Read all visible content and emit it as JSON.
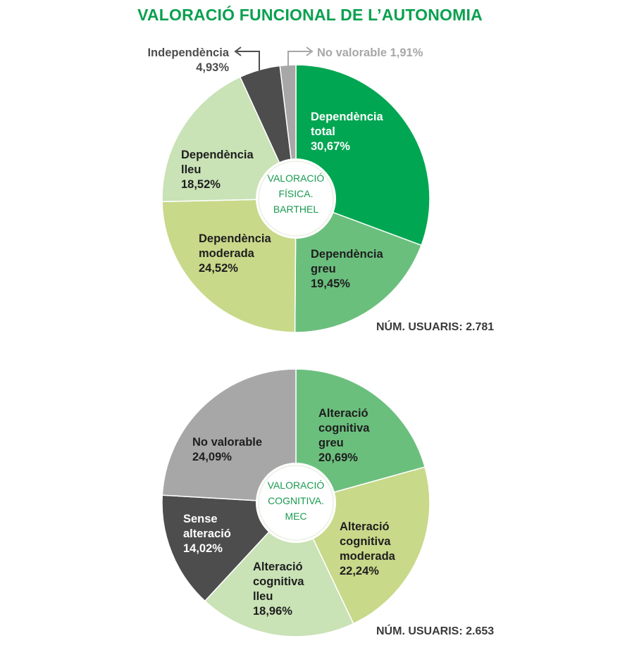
{
  "title": "VALORACIÓ FUNCIONAL DE L’AUTONOMIA",
  "chart_data": [
    {
      "type": "pie",
      "center_label": [
        "VALORACIÓ",
        "FÍSICA.",
        "BARTHEL"
      ],
      "users_label": "NÚM. USUARIS: 2.781",
      "slices": [
        {
          "label": [
            "Dependència",
            "total"
          ],
          "pct_text": "30,67%",
          "value": 30.67,
          "color": "#00a651",
          "text_color": "#ffffff"
        },
        {
          "label": [
            "Dependència",
            "greu"
          ],
          "pct_text": "19,45%",
          "value": 19.45,
          "color": "#6bbf7d",
          "text_color": "#1e1e1e"
        },
        {
          "label": [
            "Dependència",
            "moderada"
          ],
          "pct_text": "24,52%",
          "value": 24.52,
          "color": "#c8d98a",
          "text_color": "#1e1e1e"
        },
        {
          "label": [
            "Dependència",
            "lleu"
          ],
          "pct_text": "18,52%",
          "value": 18.52,
          "color": "#c9e2b6",
          "text_color": "#1e1e1e"
        },
        {
          "label": [
            "Independència"
          ],
          "pct_text": "4,93%",
          "value": 4.93,
          "color": "#4d4d4d",
          "text_color": "#4d4d4d"
        },
        {
          "label": [
            "No valorable"
          ],
          "pct_text": "1,91%",
          "value": 1.91,
          "color": "#a7a7a7",
          "text_color": "#a7a7a7"
        }
      ]
    },
    {
      "type": "pie",
      "center_label": [
        "VALORACIÓ",
        "COGNITIVA.",
        "MEC"
      ],
      "users_label": "NÚM. USUARIS: 2.653",
      "slices": [
        {
          "label": [
            "Alteració",
            "cognitiva",
            "greu"
          ],
          "pct_text": "20,69%",
          "value": 20.69,
          "color": "#6bbf7d",
          "text_color": "#1e1e1e"
        },
        {
          "label": [
            "Alteració",
            "cognitiva",
            "moderada"
          ],
          "pct_text": "22,24%",
          "value": 22.24,
          "color": "#c8d98a",
          "text_color": "#1e1e1e"
        },
        {
          "label": [
            "Alteració",
            "cognitiva",
            "lleu"
          ],
          "pct_text": "18,96%",
          "value": 18.96,
          "color": "#c9e2b6",
          "text_color": "#1e1e1e"
        },
        {
          "label": [
            "Sense",
            "alteració"
          ],
          "pct_text": "14,02%",
          "value": 14.02,
          "color": "#4d4d4d",
          "text_color": "#ffffff"
        },
        {
          "label": [
            "No valorable"
          ],
          "pct_text": "24,09%",
          "value": 24.09,
          "color": "#a7a7a7",
          "text_color": "#1e1e1e"
        }
      ]
    }
  ]
}
